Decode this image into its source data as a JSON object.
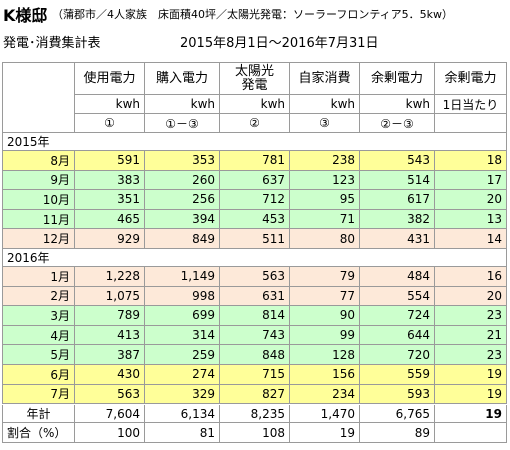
{
  "header": {
    "title": "K様邸",
    "subtitle": "（蒲郡市／4人家族　床面積40坪／太陽光発電：ソーラーフロンティア5．5kw）",
    "table_name": "発電･消費集計表",
    "period": "2015年8月1日～2016年7月31日"
  },
  "table": {
    "columns": [
      [
        "使用電力"
      ],
      [
        "購入電力"
      ],
      [
        "太陽光",
        "発電"
      ],
      [
        "自家消費"
      ],
      [
        "余剰電力"
      ],
      [
        "余剰電力"
      ]
    ],
    "units": [
      "kwh",
      "kwh",
      "kwh",
      "kwh",
      "kwh",
      "1日当たり"
    ],
    "formulas": [
      "①",
      "①－③",
      "②",
      "③",
      "②－③"
    ],
    "sections": [
      {
        "label": "2015年",
        "rows": [
          {
            "month": "8月",
            "color": "#ffff99",
            "values": [
              "591",
              "353",
              "781",
              "238",
              "543",
              "18"
            ]
          },
          {
            "month": "9月",
            "color": "#ccffcc",
            "values": [
              "383",
              "260",
              "637",
              "123",
              "514",
              "17"
            ]
          },
          {
            "month": "10月",
            "color": "#ccffcc",
            "values": [
              "351",
              "256",
              "712",
              "95",
              "617",
              "20"
            ]
          },
          {
            "month": "11月",
            "color": "#ccffcc",
            "values": [
              "465",
              "394",
              "453",
              "71",
              "382",
              "13"
            ]
          },
          {
            "month": "12月",
            "color": "#fde9d9",
            "values": [
              "929",
              "849",
              "511",
              "80",
              "431",
              "14"
            ]
          }
        ]
      },
      {
        "label": "2016年",
        "rows": [
          {
            "month": "1月",
            "color": "#fde9d9",
            "values": [
              "1,228",
              "1,149",
              "563",
              "79",
              "484",
              "16"
            ]
          },
          {
            "month": "2月",
            "color": "#fde9d9",
            "values": [
              "1,075",
              "998",
              "631",
              "77",
              "554",
              "20"
            ]
          },
          {
            "month": "3月",
            "color": "#ccffcc",
            "values": [
              "789",
              "699",
              "814",
              "90",
              "724",
              "23"
            ]
          },
          {
            "month": "4月",
            "color": "#ccffcc",
            "values": [
              "413",
              "314",
              "743",
              "99",
              "644",
              "21"
            ]
          },
          {
            "month": "5月",
            "color": "#ccffcc",
            "values": [
              "387",
              "259",
              "848",
              "128",
              "720",
              "23"
            ]
          },
          {
            "month": "6月",
            "color": "#ffff99",
            "values": [
              "430",
              "274",
              "715",
              "156",
              "559",
              "19"
            ]
          },
          {
            "month": "7月",
            "color": "#ffff99",
            "values": [
              "563",
              "329",
              "827",
              "234",
              "593",
              "19"
            ]
          }
        ]
      }
    ],
    "total": {
      "label": "年計",
      "values": [
        "7,604",
        "6,134",
        "8,235",
        "1,470",
        "6,765",
        "19"
      ]
    },
    "ratio": {
      "label": "割合（%）",
      "values": [
        "100",
        "81",
        "108",
        "19",
        "89"
      ]
    }
  }
}
